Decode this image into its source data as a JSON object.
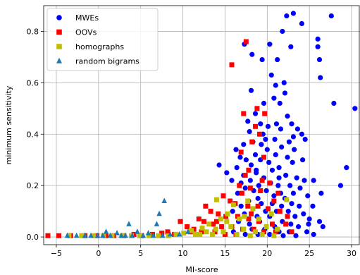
{
  "chart_data": {
    "type": "scatter",
    "title": "",
    "xlabel": "MI-score",
    "ylabel": "minimum sensitivity",
    "xlim": [
      -6.5,
      31
    ],
    "ylim": [
      -0.03,
      0.9
    ],
    "xticks": [
      -5,
      0,
      5,
      10,
      15,
      20,
      25,
      30
    ],
    "yticks": [
      0.0,
      0.2,
      0.4,
      0.6,
      0.8
    ],
    "xtick_labels": [
      "−5",
      "0",
      "5",
      "10",
      "15",
      "20",
      "25",
      "30"
    ],
    "ytick_labels": [
      "0.0",
      "0.2",
      "0.4",
      "0.6",
      "0.8"
    ],
    "grid": true,
    "legend_position": "top-left",
    "series": [
      {
        "name": "MWEs",
        "marker": "circle",
        "color": "#0000ff",
        "points": [
          [
            22.3,
            0.86
          ],
          [
            23.1,
            0.87
          ],
          [
            27.6,
            0.86
          ],
          [
            26.0,
            0.77
          ],
          [
            24.1,
            0.83
          ],
          [
            21.8,
            0.8
          ],
          [
            17.3,
            0.75
          ],
          [
            20.3,
            0.75
          ],
          [
            22.8,
            0.74
          ],
          [
            19.4,
            0.69
          ],
          [
            18.2,
            0.71
          ],
          [
            21.2,
            0.69
          ],
          [
            20.5,
            0.63
          ],
          [
            21.0,
            0.59
          ],
          [
            22.1,
            0.56
          ],
          [
            26.3,
            0.62
          ],
          [
            26.0,
            0.74
          ],
          [
            26.2,
            0.69
          ],
          [
            27.9,
            0.52
          ],
          [
            30.4,
            0.5
          ],
          [
            22.0,
            0.6
          ],
          [
            18.1,
            0.57
          ],
          [
            20.8,
            0.54
          ],
          [
            19.6,
            0.52
          ],
          [
            21.5,
            0.52
          ],
          [
            18.6,
            0.48
          ],
          [
            17.7,
            0.45
          ],
          [
            22.4,
            0.47
          ],
          [
            22.9,
            0.44
          ],
          [
            20.1,
            0.43
          ],
          [
            21.1,
            0.44
          ],
          [
            21.6,
            0.42
          ],
          [
            19.2,
            0.44
          ],
          [
            23.6,
            0.42
          ],
          [
            24.1,
            0.4
          ],
          [
            23.1,
            0.39
          ],
          [
            19.5,
            0.4
          ],
          [
            17.9,
            0.41
          ],
          [
            24.5,
            0.38
          ],
          [
            22.6,
            0.37
          ],
          [
            20.9,
            0.38
          ],
          [
            18.3,
            0.37
          ],
          [
            19.8,
            0.38
          ],
          [
            17.2,
            0.36
          ],
          [
            16.3,
            0.34
          ],
          [
            21.7,
            0.35
          ],
          [
            23.2,
            0.34
          ],
          [
            16.8,
            0.31
          ],
          [
            18.6,
            0.32
          ],
          [
            21.0,
            0.32
          ],
          [
            22.4,
            0.31
          ],
          [
            17.5,
            0.3
          ],
          [
            19.2,
            0.3
          ],
          [
            20.2,
            0.29
          ],
          [
            23.0,
            0.29
          ],
          [
            24.2,
            0.3
          ],
          [
            18.1,
            0.28
          ],
          [
            16.4,
            0.27
          ],
          [
            21.4,
            0.27
          ],
          [
            20.6,
            0.26
          ],
          [
            14.3,
            0.28
          ],
          [
            15.2,
            0.25
          ],
          [
            17.2,
            0.24
          ],
          [
            18.7,
            0.25
          ],
          [
            19.6,
            0.23
          ],
          [
            22.2,
            0.24
          ],
          [
            23.5,
            0.23
          ],
          [
            24.4,
            0.22
          ],
          [
            29.4,
            0.27
          ],
          [
            28.7,
            0.2
          ],
          [
            26.4,
            0.17
          ],
          [
            25.5,
            0.22
          ],
          [
            15.8,
            0.22
          ],
          [
            16.9,
            0.21
          ],
          [
            18.0,
            0.22
          ],
          [
            19.0,
            0.2
          ],
          [
            20.4,
            0.21
          ],
          [
            21.3,
            0.2
          ],
          [
            22.7,
            0.2
          ],
          [
            23.9,
            0.19
          ],
          [
            17.4,
            0.19
          ],
          [
            18.4,
            0.18
          ],
          [
            19.9,
            0.18
          ],
          [
            21.6,
            0.17
          ],
          [
            23.1,
            0.17
          ],
          [
            16.5,
            0.17
          ],
          [
            24.8,
            0.16
          ],
          [
            20.8,
            0.16
          ],
          [
            22.1,
            0.15
          ],
          [
            18.9,
            0.15
          ],
          [
            17.8,
            0.14
          ],
          [
            19.3,
            0.13
          ],
          [
            20.6,
            0.13
          ],
          [
            22.9,
            0.13
          ],
          [
            23.8,
            0.12
          ],
          [
            25.4,
            0.12
          ],
          [
            16.9,
            0.12
          ],
          [
            21.7,
            0.12
          ],
          [
            18.3,
            0.11
          ],
          [
            19.8,
            0.1
          ],
          [
            21.1,
            0.1
          ],
          [
            22.5,
            0.1
          ],
          [
            24.3,
            0.09
          ],
          [
            15.9,
            0.1
          ],
          [
            17.3,
            0.09
          ],
          [
            18.8,
            0.08
          ],
          [
            20.3,
            0.08
          ],
          [
            23.3,
            0.08
          ],
          [
            25.0,
            0.07
          ],
          [
            26.2,
            0.06
          ],
          [
            24.9,
            0.05
          ],
          [
            19.1,
            0.06
          ],
          [
            21.8,
            0.06
          ],
          [
            22.8,
            0.05
          ],
          [
            16.6,
            0.06
          ],
          [
            17.9,
            0.05
          ],
          [
            20.9,
            0.04
          ],
          [
            23.7,
            0.04
          ],
          [
            26.6,
            0.04
          ],
          [
            18.2,
            0.03
          ],
          [
            19.7,
            0.03
          ],
          [
            21.4,
            0.02
          ],
          [
            22.6,
            0.02
          ],
          [
            24.7,
            0.02
          ],
          [
            16.0,
            0.02
          ],
          [
            17.4,
            0.01
          ],
          [
            18.9,
            0.01
          ],
          [
            20.3,
            0.01
          ],
          [
            21.9,
            0.005
          ],
          [
            23.4,
            0.005
          ],
          [
            25.5,
            0.01
          ],
          [
            19.3,
            0.36
          ],
          [
            20.0,
            0.34
          ],
          [
            18.7,
            0.26
          ],
          [
            21.4,
            0.23
          ]
        ]
      },
      {
        "name": "OOVs",
        "marker": "square",
        "color": "#ff0000",
        "points": [
          [
            15.8,
            0.67
          ],
          [
            17.5,
            0.76
          ],
          [
            18.8,
            0.5
          ],
          [
            17.2,
            0.48
          ],
          [
            19.7,
            0.48
          ],
          [
            18.6,
            0.43
          ],
          [
            19.1,
            0.4
          ],
          [
            18.2,
            0.37
          ],
          [
            16.9,
            0.33
          ],
          [
            19.6,
            0.31
          ],
          [
            17.8,
            0.26
          ],
          [
            17.4,
            0.24
          ],
          [
            19.4,
            0.22
          ],
          [
            20.3,
            0.21
          ],
          [
            16.7,
            0.2
          ],
          [
            18.0,
            0.19
          ],
          [
            21.3,
            0.17
          ],
          [
            19.2,
            0.18
          ],
          [
            17.0,
            0.17
          ],
          [
            14.8,
            0.16
          ],
          [
            15.6,
            0.14
          ],
          [
            16.2,
            0.13
          ],
          [
            17.7,
            0.12
          ],
          [
            18.9,
            0.12
          ],
          [
            20.1,
            0.11
          ],
          [
            21.5,
            0.1
          ],
          [
            22.4,
            0.08
          ],
          [
            12.7,
            0.12
          ],
          [
            13.3,
            0.1
          ],
          [
            14.2,
            0.09
          ],
          [
            15.1,
            0.08
          ],
          [
            16.5,
            0.08
          ],
          [
            17.8,
            0.07
          ],
          [
            19.0,
            0.06
          ],
          [
            20.6,
            0.05
          ],
          [
            22.2,
            0.05
          ],
          [
            11.9,
            0.07
          ],
          [
            12.5,
            0.06
          ],
          [
            13.6,
            0.05
          ],
          [
            14.6,
            0.04
          ],
          [
            15.8,
            0.04
          ],
          [
            17.1,
            0.03
          ],
          [
            18.4,
            0.03
          ],
          [
            19.6,
            0.02
          ],
          [
            21.0,
            0.02
          ],
          [
            9.7,
            0.06
          ],
          [
            10.5,
            0.04
          ],
          [
            11.3,
            0.03
          ],
          [
            12.2,
            0.02
          ],
          [
            13.8,
            0.02
          ],
          [
            15.0,
            0.01
          ],
          [
            16.3,
            0.01
          ],
          [
            8.2,
            0.02
          ],
          [
            9.0,
            0.01
          ],
          [
            6.4,
            0.01
          ],
          [
            5.1,
            0.005
          ],
          [
            4.2,
            0.01
          ],
          [
            3.0,
            0.005
          ],
          [
            1.8,
            0.005
          ],
          [
            0.9,
            0.005
          ],
          [
            -0.2,
            0.005
          ],
          [
            -1.6,
            0.005
          ],
          [
            -3.3,
            0.005
          ],
          [
            -4.7,
            0.005
          ],
          [
            -6.0,
            0.005
          ],
          [
            7.5,
            0.015
          ],
          [
            10.9,
            0.02
          ],
          [
            22.9,
            0.02
          ],
          [
            14.0,
            0.06
          ],
          [
            18.1,
            0.09
          ],
          [
            20.8,
            0.14
          ]
        ]
      },
      {
        "name": "homographs",
        "marker": "square",
        "color": "#bfbf00",
        "points": [
          [
            14.0,
            0.145
          ],
          [
            16.0,
            0.125
          ],
          [
            17.7,
            0.14
          ],
          [
            22.3,
            0.145
          ],
          [
            18.3,
            0.11
          ],
          [
            20.5,
            0.09
          ],
          [
            16.7,
            0.07
          ],
          [
            15.2,
            0.06
          ],
          [
            13.1,
            0.05
          ],
          [
            12.3,
            0.035
          ],
          [
            11.0,
            0.025
          ],
          [
            10.1,
            0.015
          ],
          [
            9.2,
            0.01
          ],
          [
            8.3,
            0.005
          ],
          [
            7.1,
            0.005
          ],
          [
            6.0,
            0.005
          ],
          [
            4.9,
            0.005
          ],
          [
            3.9,
            0.005
          ],
          [
            2.8,
            0.005
          ],
          [
            1.6,
            0.005
          ],
          [
            0.6,
            0.005
          ],
          [
            -0.6,
            0.005
          ],
          [
            -2.0,
            0.005
          ],
          [
            -3.5,
            0.005
          ],
          [
            13.9,
            0.03
          ],
          [
            14.8,
            0.02
          ],
          [
            15.7,
            0.04
          ],
          [
            17.2,
            0.03
          ],
          [
            18.6,
            0.02
          ],
          [
            19.9,
            0.04
          ],
          [
            21.2,
            0.03
          ],
          [
            12.0,
            0.01
          ],
          [
            13.5,
            0.01
          ],
          [
            16.4,
            0.01
          ],
          [
            18.0,
            0.005
          ],
          [
            19.4,
            0.01
          ],
          [
            20.8,
            0.005
          ],
          [
            15.3,
            0.09
          ],
          [
            17.3,
            0.08
          ],
          [
            19.0,
            0.07
          ],
          [
            14.5,
            0.07
          ],
          [
            12.8,
            0.02
          ],
          [
            11.5,
            0.01
          ]
        ]
      },
      {
        "name": "random bigrams",
        "marker": "triangle",
        "color": "#1f77b4",
        "points": [
          [
            7.8,
            0.14
          ],
          [
            7.2,
            0.09
          ],
          [
            3.6,
            0.05
          ],
          [
            6.9,
            0.05
          ],
          [
            0.9,
            0.02
          ],
          [
            2.2,
            0.015
          ],
          [
            4.6,
            0.02
          ],
          [
            5.9,
            0.015
          ],
          [
            -3.7,
            0.005
          ],
          [
            -2.6,
            0.005
          ],
          [
            -1.6,
            0.005
          ],
          [
            -0.9,
            0.005
          ],
          [
            -0.1,
            0.005
          ],
          [
            0.5,
            0.005
          ],
          [
            1.4,
            0.005
          ],
          [
            2.7,
            0.005
          ],
          [
            3.2,
            0.005
          ],
          [
            4.0,
            0.005
          ],
          [
            5.3,
            0.005
          ],
          [
            6.5,
            0.005
          ],
          [
            7.6,
            0.005
          ],
          [
            8.5,
            0.01
          ],
          [
            9.6,
            0.01
          ],
          [
            10.6,
            0.02
          ]
        ]
      }
    ]
  }
}
